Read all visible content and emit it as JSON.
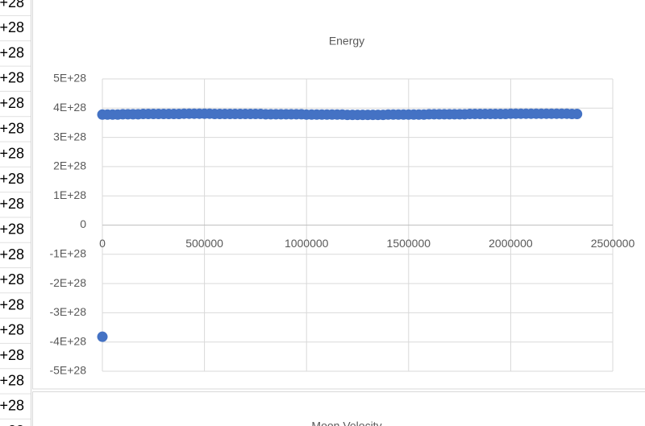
{
  "sheet": {
    "cells": [
      "+28",
      "+28",
      "+28",
      "+28",
      "+28",
      "+28",
      "+28",
      "+28",
      "+28",
      "+28",
      "+28",
      "+28",
      "+28",
      "+28",
      "+28",
      "+28",
      "+28",
      "+28"
    ]
  },
  "chart_data": [
    {
      "type": "scatter",
      "title": "Energy",
      "xlim": [
        0,
        2500000
      ],
      "xticks": [
        0,
        500000,
        1000000,
        1500000,
        2000000,
        2500000
      ],
      "ylim": [
        -5e+28,
        5e+28
      ],
      "yticks": [
        {
          "value": -5e+28,
          "label": "-5E+28"
        },
        {
          "value": -4e+28,
          "label": "-4E+28"
        },
        {
          "value": -3e+28,
          "label": "-3E+28"
        },
        {
          "value": -2e+28,
          "label": "-2E+28"
        },
        {
          "value": -1e+28,
          "label": "-1E+28"
        },
        0,
        {
          "value": 1e+28,
          "label": "1E+28"
        },
        {
          "value": 2e+28,
          "label": "2E+28"
        },
        {
          "value": 3e+28,
          "label": "3E+28"
        },
        {
          "value": 4e+28,
          "label": "4E+28"
        },
        {
          "value": 5e+28,
          "label": "5E+28"
        }
      ],
      "grid": true,
      "series": [
        {
          "color": "#4472c4",
          "x": [
            0,
            25000,
            50000,
            75000,
            100000,
            125000,
            150000,
            175000,
            200000,
            225000,
            250000,
            275000,
            300000,
            325000,
            350000,
            375000,
            400000,
            425000,
            450000,
            475000,
            500000,
            525000,
            550000,
            575000,
            600000,
            625000,
            650000,
            675000,
            700000,
            725000,
            750000,
            775000,
            800000,
            825000,
            850000,
            875000,
            900000,
            925000,
            950000,
            975000,
            1000000,
            1025000,
            1050000,
            1075000,
            1100000,
            1125000,
            1150000,
            1175000,
            1200000,
            1225000,
            1250000,
            1275000,
            1300000,
            1325000,
            1350000,
            1375000,
            1400000,
            1425000,
            1450000,
            1475000,
            1500000,
            1525000,
            1550000,
            1575000,
            1600000,
            1625000,
            1650000,
            1675000,
            1700000,
            1725000,
            1750000,
            1775000,
            1800000,
            1825000,
            1850000,
            1875000,
            1900000,
            1925000,
            1950000,
            1975000,
            2000000,
            2025000,
            2050000,
            2075000,
            2100000,
            2125000,
            2150000,
            2175000,
            2200000,
            2225000,
            2250000,
            2275000,
            2300000,
            2325000,
            0
          ],
          "values": [
            3.78e+28,
            3.78e+28,
            3.78e+28,
            3.78e+28,
            3.79e+28,
            3.79e+28,
            3.79e+28,
            3.79e+28,
            3.8e+28,
            3.8e+28,
            3.8e+28,
            3.8e+28,
            3.8e+28,
            3.8e+28,
            3.8e+28,
            3.8e+28,
            3.81e+28,
            3.81e+28,
            3.81e+28,
            3.81e+28,
            3.81e+28,
            3.81e+28,
            3.8e+28,
            3.8e+28,
            3.8e+28,
            3.8e+28,
            3.8e+28,
            3.8e+28,
            3.8e+28,
            3.8e+28,
            3.8e+28,
            3.8e+28,
            3.79e+28,
            3.79e+28,
            3.79e+28,
            3.79e+28,
            3.79e+28,
            3.79e+28,
            3.79e+28,
            3.79e+28,
            3.78e+28,
            3.78e+28,
            3.78e+28,
            3.78e+28,
            3.78e+28,
            3.78e+28,
            3.78e+28,
            3.78e+28,
            3.77e+28,
            3.77e+28,
            3.77e+28,
            3.77e+28,
            3.77e+28,
            3.77e+28,
            3.77e+28,
            3.77e+28,
            3.78e+28,
            3.78e+28,
            3.78e+28,
            3.78e+28,
            3.78e+28,
            3.78e+28,
            3.78e+28,
            3.78e+28,
            3.79e+28,
            3.79e+28,
            3.79e+28,
            3.79e+28,
            3.79e+28,
            3.79e+28,
            3.79e+28,
            3.79e+28,
            3.8e+28,
            3.8e+28,
            3.8e+28,
            3.8e+28,
            3.8e+28,
            3.8e+28,
            3.8e+28,
            3.8e+28,
            3.81e+28,
            3.81e+28,
            3.81e+28,
            3.81e+28,
            3.81e+28,
            3.81e+28,
            3.81e+28,
            3.81e+28,
            3.81e+28,
            3.81e+28,
            3.81e+28,
            3.81e+28,
            3.8e+28,
            3.8e+28,
            -3.82e+28
          ]
        }
      ]
    },
    {
      "type": "scatter",
      "title": "Moon Velocity"
    }
  ]
}
